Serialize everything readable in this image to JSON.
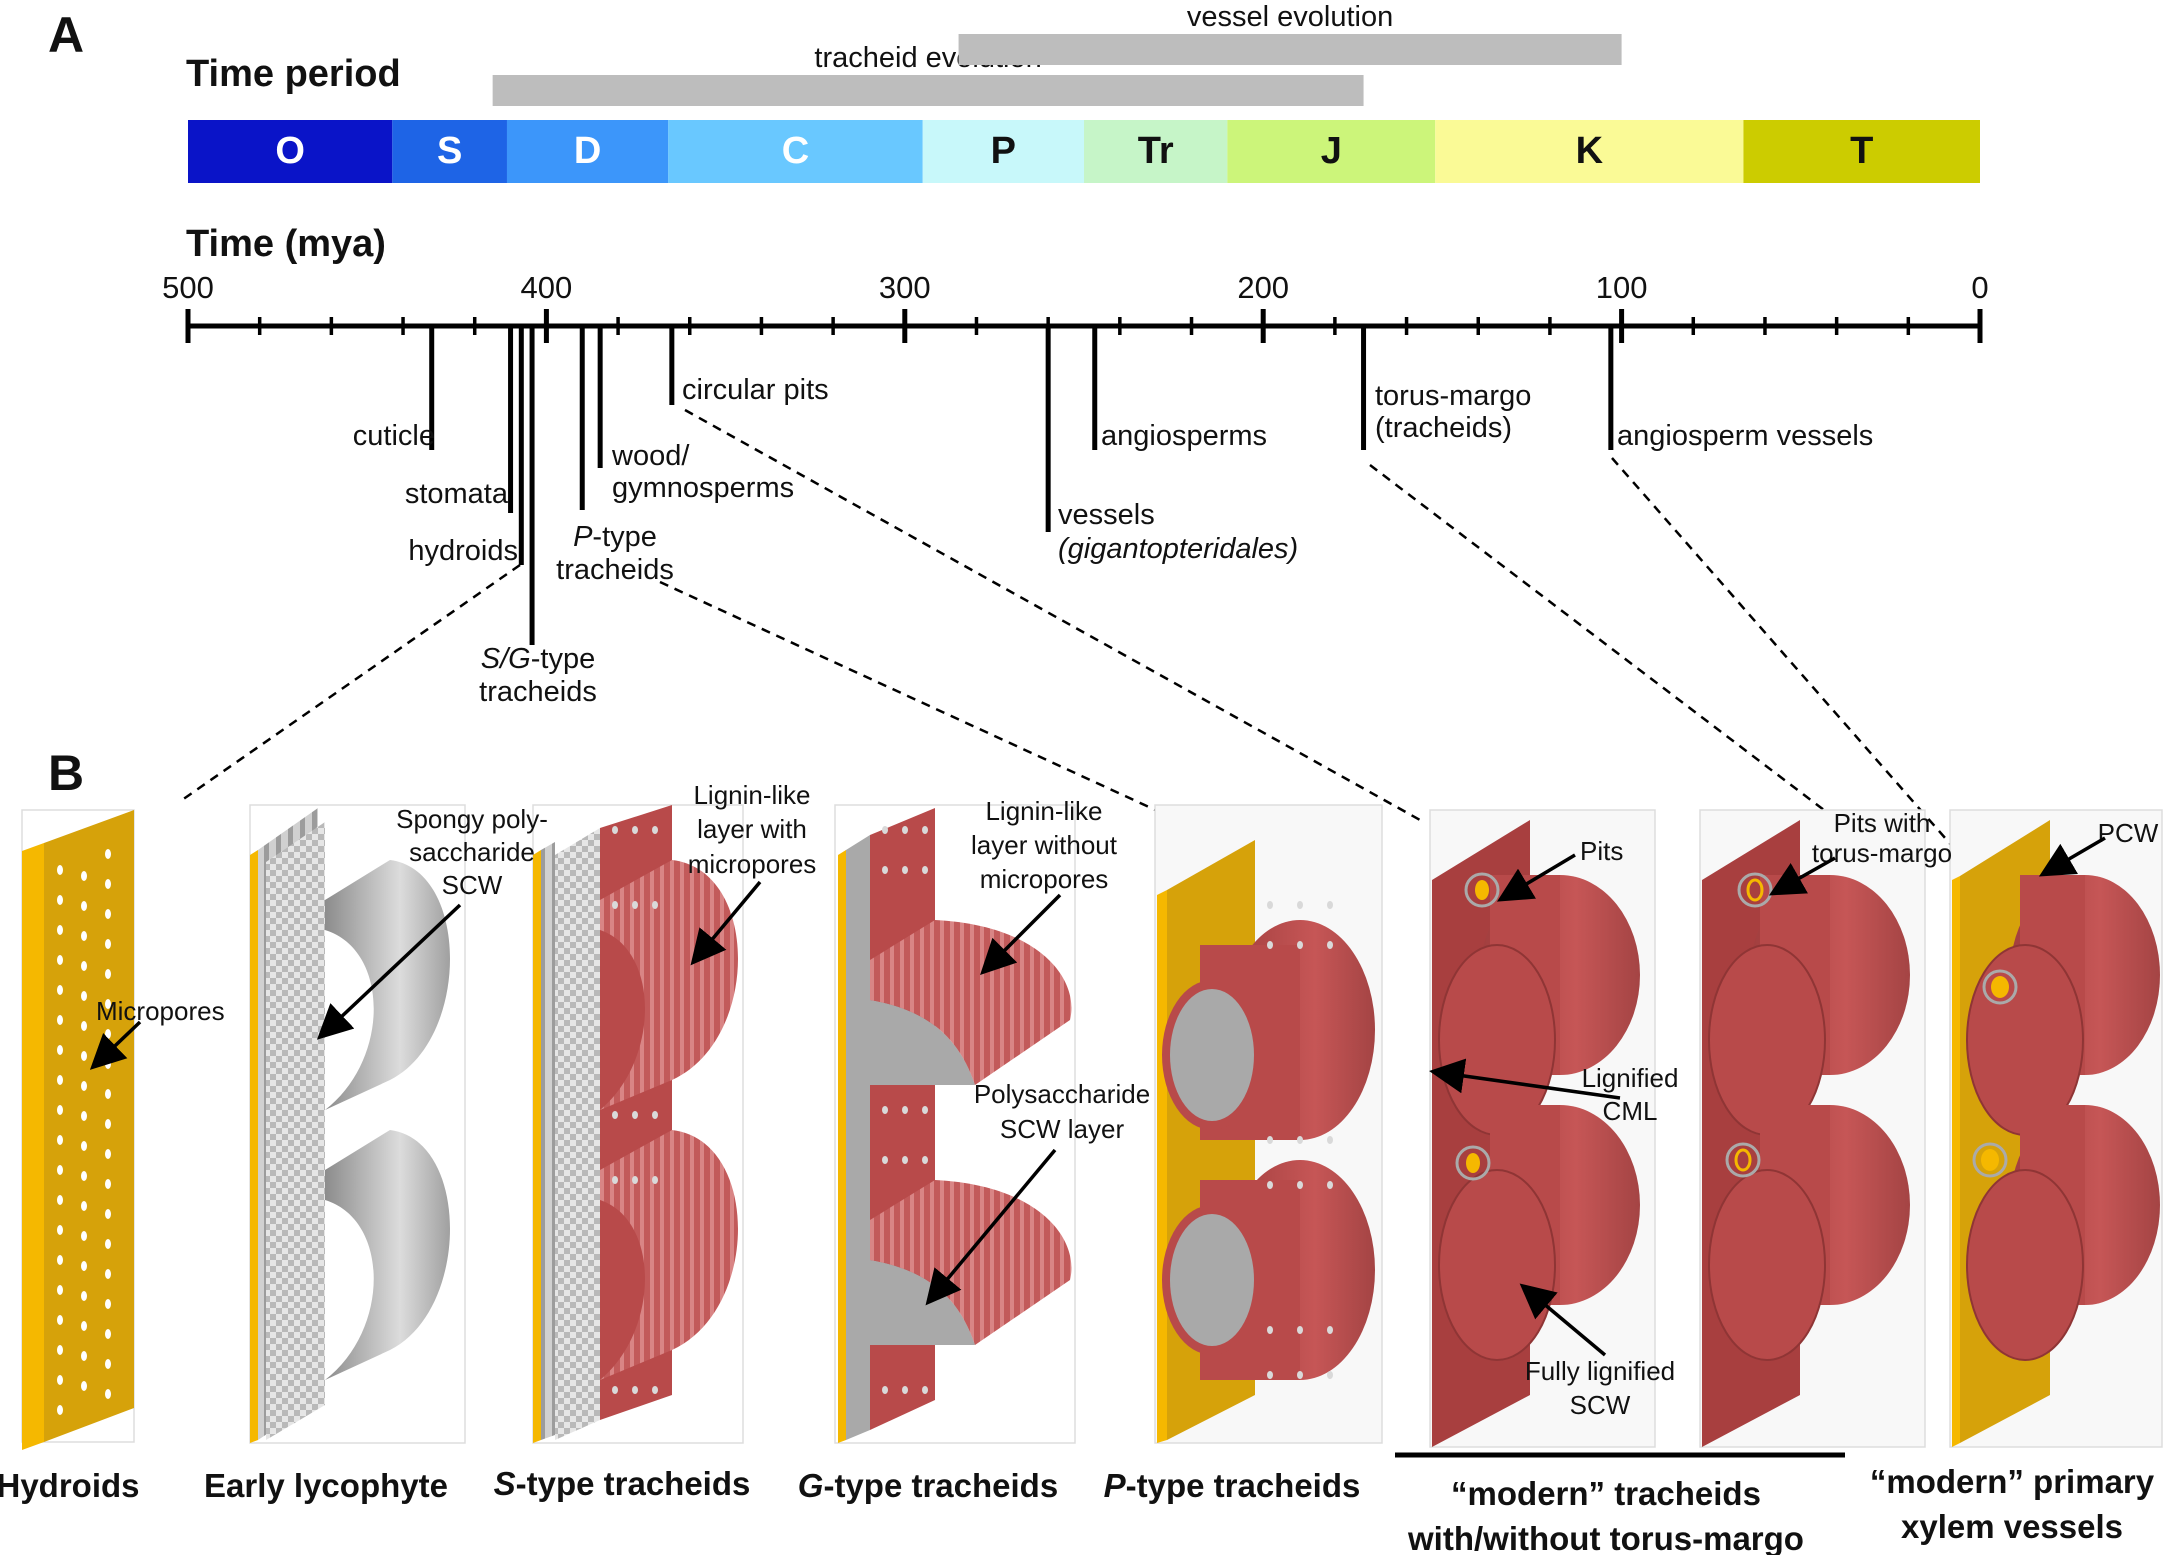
{
  "panel_a": {
    "letter": "A",
    "time_period_label": "Time period",
    "time_label": "Time (mya)",
    "bars": [
      {
        "label": "tracheid evolution",
        "start_mya": 415,
        "end_mya": 172
      },
      {
        "label": "vessel evolution",
        "start_mya": 285,
        "end_mya": 100
      }
    ],
    "periods": [
      {
        "code": "O",
        "start": 500,
        "end": 443,
        "color": "#0a14c8",
        "text_color": "#ffffff"
      },
      {
        "code": "S",
        "start": 443,
        "end": 411,
        "color": "#1e64e6",
        "text_color": "#ffffff"
      },
      {
        "code": "D",
        "start": 411,
        "end": 366,
        "color": "#3c96fa",
        "text_color": "#ffffff"
      },
      {
        "code": "C",
        "start": 366,
        "end": 295,
        "color": "#69c8ff",
        "text_color": "#ffffff"
      },
      {
        "code": "P",
        "start": 295,
        "end": 250,
        "color": "#c8f8fa",
        "text_color": "#111111"
      },
      {
        "code": "Tr",
        "start": 250,
        "end": 210,
        "color": "#c6f5c8",
        "text_color": "#111111"
      },
      {
        "code": "J",
        "start": 210,
        "end": 152,
        "color": "#ccf57a",
        "text_color": "#111111"
      },
      {
        "code": "K",
        "start": 152,
        "end": 66,
        "color": "#fafa96",
        "text_color": "#111111"
      },
      {
        "code": "T",
        "start": 66,
        "end": 0,
        "color": "#cccc00",
        "text_color": "#111111"
      }
    ],
    "ticks": [
      "500",
      "400",
      "300",
      "200",
      "100",
      "0"
    ],
    "events": [
      {
        "lines": [
          "cuticle"
        ],
        "mya": 432
      },
      {
        "lines": [
          "stomata"
        ],
        "mya": 410
      },
      {
        "lines": [
          "hydroids"
        ],
        "mya": 407
      },
      {
        "lines": [
          "S/G-type",
          "tracheids"
        ],
        "mya": 404
      },
      {
        "lines": [
          "P-type",
          "tracheids"
        ],
        "mya": 390
      },
      {
        "lines": [
          "wood/",
          "gymnosperms"
        ],
        "mya": 385
      },
      {
        "lines": [
          "circular pits"
        ],
        "mya": 365
      },
      {
        "lines": [
          "vessels",
          "(gigantopteridales)"
        ],
        "mya": 260
      },
      {
        "lines": [
          "angiosperms"
        ],
        "mya": 247
      },
      {
        "lines": [
          "torus-margo",
          "(tracheids)"
        ],
        "mya": 172
      },
      {
        "lines": [
          "angiosperm vessels"
        ],
        "mya": 103
      }
    ]
  },
  "panel_b": {
    "letter": "B",
    "annotations": {
      "micropores": "Micropores",
      "spongy": [
        "Spongy poly-",
        "saccharide",
        "SCW"
      ],
      "lignin_with": [
        "Lignin-like",
        "layer with",
        "micropores"
      ],
      "lignin_without": [
        "Lignin-like",
        "layer without",
        "micropores"
      ],
      "polysaccharide": [
        "Polysaccharide",
        "SCW layer"
      ],
      "pits": "Pits",
      "lignified_cml": [
        "Lignified",
        "CML"
      ],
      "fully_lignified": [
        "Fully lignified",
        "SCW"
      ],
      "pits_torus": [
        "Pits with",
        "torus-margo"
      ],
      "pcw": "PCW"
    },
    "captions": {
      "hydroids": "Hydroids",
      "early_lycophyte": "Early lycophyte",
      "s_type_italic": "S",
      "s_type_rest": "-type tracheids",
      "g_type_italic": "G",
      "g_type_rest": "-type tracheids",
      "p_type_italic": "P",
      "p_type_rest": "-type tracheids",
      "modern_tracheids": [
        "“modern” tracheids",
        "with/without torus-margo"
      ],
      "modern_vessels": [
        "“modern” primary",
        "xylem vessels"
      ]
    },
    "colors": {
      "wood": "#d6a20a",
      "edge": "#f5b800",
      "red": "#b84a4a",
      "red_dark": "#8f3535",
      "gray": "#a9a9a9"
    }
  }
}
